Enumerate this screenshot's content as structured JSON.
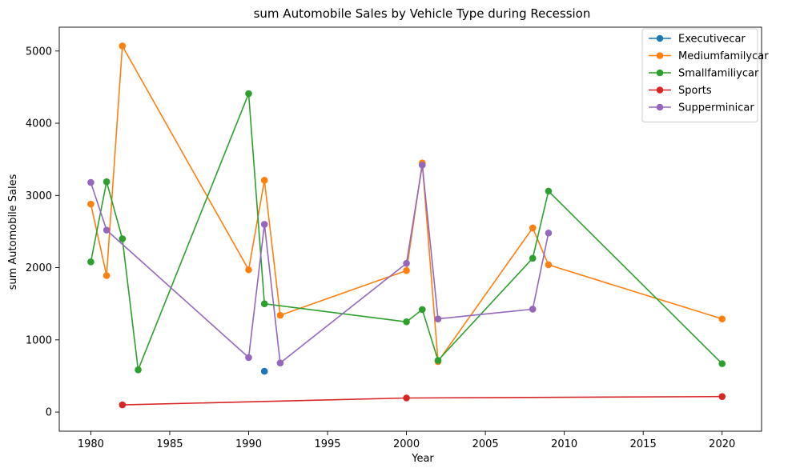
{
  "chart_data": {
    "type": "line",
    "title": "sum Automobile Sales by Vehicle Type during Recession",
    "xlabel": "Year",
    "ylabel": "sum Automobile Sales",
    "xlim": [
      1978,
      2022.5
    ],
    "ylim": [
      -265,
      5330
    ],
    "xticks": [
      1980,
      1985,
      1990,
      1995,
      2000,
      2005,
      2010,
      2015,
      2020
    ],
    "yticks": [
      0,
      1000,
      2000,
      3000,
      4000,
      5000
    ],
    "grid": false,
    "legend_position": "top-right",
    "series": [
      {
        "name": "Executivecar",
        "color": "#1f77b4",
        "points": [
          [
            1991,
            565
          ]
        ]
      },
      {
        "name": "Mediumfamilycar",
        "color": "#ff7f0e",
        "points": [
          [
            1980,
            2880
          ],
          [
            1981,
            1890
          ],
          [
            1982,
            5070
          ],
          [
            1990,
            1970
          ],
          [
            1991,
            3210
          ],
          [
            1992,
            1340
          ],
          [
            2000,
            1960
          ],
          [
            2001,
            3450
          ],
          [
            2002,
            700
          ],
          [
            2008,
            2550
          ],
          [
            2009,
            2040
          ],
          [
            2020,
            1290
          ]
        ]
      },
      {
        "name": "Smallfamiliycar",
        "color": "#2ca02c",
        "points": [
          [
            1980,
            2080
          ],
          [
            1981,
            3190
          ],
          [
            1982,
            2400
          ],
          [
            1983,
            585
          ],
          [
            1990,
            4410
          ],
          [
            1991,
            1500
          ],
          [
            2000,
            1250
          ],
          [
            2001,
            1420
          ],
          [
            2002,
            715
          ],
          [
            2008,
            2130
          ],
          [
            2009,
            3060
          ],
          [
            2020,
            670
          ]
        ]
      },
      {
        "name": "Sports",
        "color": "#d62728",
        "points": [
          [
            1982,
            100
          ],
          [
            2000,
            195
          ],
          [
            2020,
            215
          ]
        ]
      },
      {
        "name": "Supperminicar",
        "color": "#9467bd",
        "points": [
          [
            1980,
            3180
          ],
          [
            1981,
            2520
          ],
          [
            1990,
            755
          ],
          [
            1991,
            2600
          ],
          [
            1992,
            680
          ],
          [
            2000,
            2060
          ],
          [
            2001,
            3420
          ],
          [
            2002,
            1290
          ],
          [
            2008,
            1425
          ],
          [
            2009,
            2480
          ]
        ]
      }
    ]
  }
}
